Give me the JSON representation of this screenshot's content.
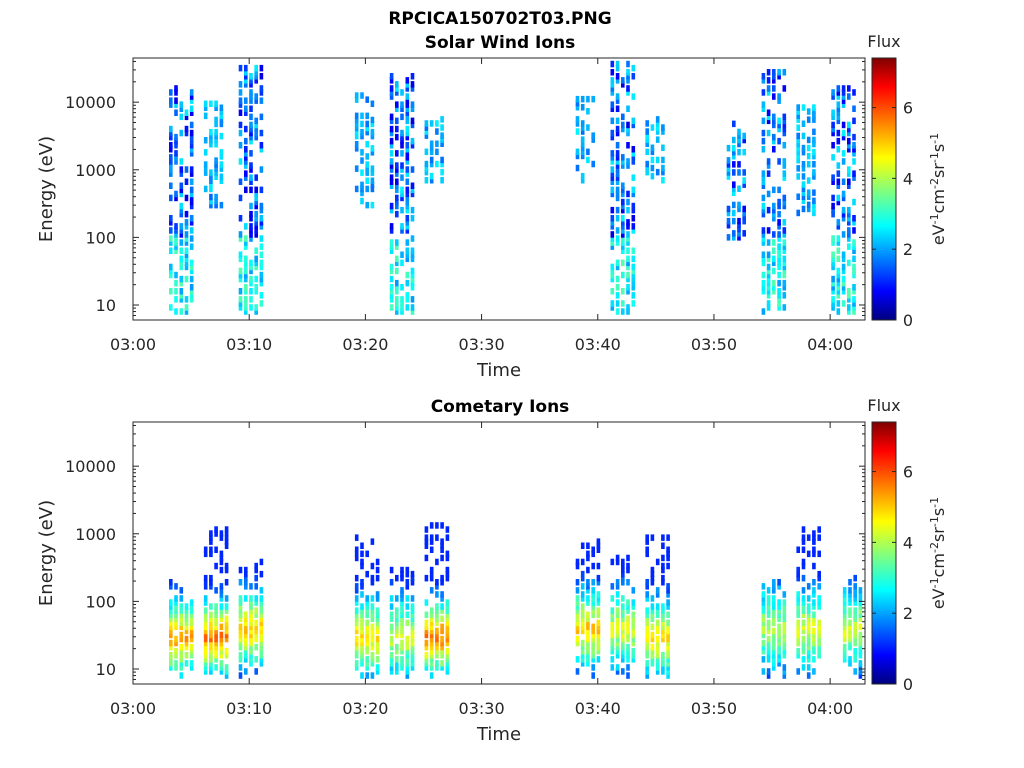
{
  "figure": {
    "title": "RPCICA150702T03.PNG"
  },
  "colormap": "jet",
  "chart_data": [
    {
      "type": "heatmap",
      "title": "Solar Wind Ions",
      "xlabel": "Time",
      "ylabel": "Energy (eV)",
      "x_range": [
        "03:00",
        "04:03"
      ],
      "x_ticks": [
        "03:00",
        "03:10",
        "03:20",
        "03:30",
        "03:40",
        "03:50",
        "04:00"
      ],
      "y_scale": "log",
      "y_range": [
        6,
        45000
      ],
      "y_ticks": [
        10,
        100,
        1000,
        10000
      ],
      "y_tick_labels": [
        "10",
        "100",
        "1000",
        "10000"
      ],
      "colorbar": {
        "label": "Flux",
        "unit_base": "eV",
        "unit_parts": [
          {
            "base": "eV",
            "exp": "-1"
          },
          {
            "base": "cm",
            "exp": "-2"
          },
          {
            "base": "sr",
            "exp": "-1"
          },
          {
            "base": "s",
            "exp": "-1"
          }
        ],
        "range": [
          0,
          7.4
        ],
        "ticks": [
          0,
          2,
          4,
          6
        ],
        "tick_labels": [
          "0",
          "2",
          "4",
          "6"
        ]
      },
      "bursts": [
        {
          "center_time": "03:04",
          "energy_range": [
            8,
            17000
          ],
          "flux_range": [
            1,
            3
          ]
        },
        {
          "center_time": "03:07",
          "energy_range": [
            300,
            10000
          ],
          "flux_range": [
            2,
            3
          ]
        },
        {
          "center_time": "03:10",
          "energy_range": [
            8,
            33000
          ],
          "flux_range": [
            1,
            3
          ]
        },
        {
          "center_time": "03:20",
          "energy_range": [
            300,
            13000
          ],
          "flux_range": [
            2,
            3
          ]
        },
        {
          "center_time": "03:23",
          "energy_range": [
            8,
            25000
          ],
          "flux_range": [
            1,
            3
          ]
        },
        {
          "center_time": "03:26",
          "energy_range": [
            700,
            6000
          ],
          "flux_range": [
            2,
            3
          ]
        },
        {
          "center_time": "03:39",
          "energy_range": [
            700,
            13000
          ],
          "flux_range": [
            2,
            3
          ]
        },
        {
          "center_time": "03:42",
          "energy_range": [
            8,
            37000
          ],
          "flux_range": [
            1,
            3
          ]
        },
        {
          "center_time": "03:45",
          "energy_range": [
            700,
            6000
          ],
          "flux_range": [
            2,
            3
          ]
        },
        {
          "center_time": "03:52",
          "energy_range": [
            100,
            5000
          ],
          "flux_range": [
            1,
            3
          ]
        },
        {
          "center_time": "03:55",
          "energy_range": [
            8,
            30000
          ],
          "flux_range": [
            1,
            3
          ]
        },
        {
          "center_time": "03:58",
          "energy_range": [
            200,
            9000
          ],
          "flux_range": [
            2,
            3
          ]
        },
        {
          "center_time": "04:01",
          "energy_range": [
            8,
            17000
          ],
          "flux_range": [
            1,
            3
          ]
        }
      ]
    },
    {
      "type": "heatmap",
      "title": "Cometary Ions",
      "xlabel": "Time",
      "ylabel": "Energy (eV)",
      "x_range": [
        "03:00",
        "04:03"
      ],
      "x_ticks": [
        "03:00",
        "03:10",
        "03:20",
        "03:30",
        "03:40",
        "03:50",
        "04:00"
      ],
      "y_scale": "log",
      "y_range": [
        6,
        45000
      ],
      "y_ticks": [
        10,
        100,
        1000,
        10000
      ],
      "y_tick_labels": [
        "10",
        "100",
        "1000",
        "10000"
      ],
      "colorbar": {
        "label": "Flux",
        "unit_base": "eV",
        "unit_parts": [
          {
            "base": "eV",
            "exp": "-1"
          },
          {
            "base": "cm",
            "exp": "-2"
          },
          {
            "base": "sr",
            "exp": "-1"
          },
          {
            "base": "s",
            "exp": "-1"
          }
        ],
        "range": [
          0,
          7.4
        ],
        "ticks": [
          0,
          2,
          4,
          6
        ],
        "tick_labels": [
          "0",
          "2",
          "4",
          "6"
        ]
      },
      "bursts": [
        {
          "center_time": "03:04",
          "energy_range": [
            8,
            200
          ],
          "peak_energy": 30,
          "flux_range": [
            2,
            5.5
          ]
        },
        {
          "center_time": "03:07",
          "energy_range": [
            8,
            1300
          ],
          "peak_energy": 30,
          "flux_range": [
            2,
            5.8
          ]
        },
        {
          "center_time": "03:10",
          "energy_range": [
            8,
            400
          ],
          "peak_energy": 40,
          "flux_range": [
            2,
            5.2
          ]
        },
        {
          "center_time": "03:20",
          "energy_range": [
            8,
            1000
          ],
          "peak_energy": 30,
          "flux_range": [
            2,
            5
          ]
        },
        {
          "center_time": "03:23",
          "energy_range": [
            8,
            400
          ],
          "peak_energy": 30,
          "flux_range": [
            2,
            4.5
          ]
        },
        {
          "center_time": "03:26",
          "energy_range": [
            8,
            1400
          ],
          "peak_energy": 30,
          "flux_range": [
            2,
            5.8
          ]
        },
        {
          "center_time": "03:39",
          "energy_range": [
            8,
            1000
          ],
          "peak_energy": 40,
          "flux_range": [
            2,
            5.2
          ]
        },
        {
          "center_time": "03:42",
          "energy_range": [
            8,
            500
          ],
          "peak_energy": 40,
          "flux_range": [
            2,
            4.5
          ]
        },
        {
          "center_time": "03:45",
          "energy_range": [
            8,
            1000
          ],
          "peak_energy": 30,
          "flux_range": [
            2,
            5
          ]
        },
        {
          "center_time": "03:55",
          "energy_range": [
            8,
            200
          ],
          "peak_energy": 40,
          "flux_range": [
            2,
            4.2
          ]
        },
        {
          "center_time": "03:58",
          "energy_range": [
            8,
            1200
          ],
          "peak_energy": 40,
          "flux_range": [
            2,
            4.5
          ]
        },
        {
          "center_time": "04:02",
          "energy_range": [
            8,
            250
          ],
          "peak_energy": 40,
          "flux_range": [
            2,
            4.5
          ]
        }
      ]
    }
  ]
}
